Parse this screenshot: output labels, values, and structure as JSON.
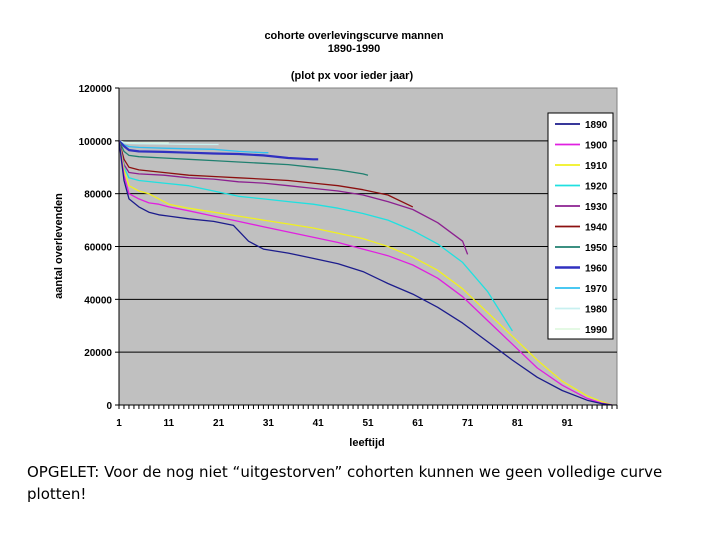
{
  "caption": "OPGELET: Voor de nog niet “uitgestorven” cohorten kunnen we geen volledige curve plotten!",
  "chart_data": {
    "type": "line",
    "title": [
      "cohorte overlevingscurve  mannen",
      "1890-1990",
      "(plot px voor ieder jaar)"
    ],
    "xlabel": "leeftijd",
    "ylabel": "aantal overlevenden",
    "xlim": [
      1,
      101
    ],
    "ylim": [
      0,
      120000
    ],
    "xticks": [
      1,
      11,
      21,
      31,
      41,
      51,
      61,
      71,
      81,
      91
    ],
    "yticks": [
      0,
      20000,
      40000,
      60000,
      80000,
      100000,
      120000
    ],
    "ytick_labels": [
      "0",
      "20000",
      "40000",
      "60000",
      "80000",
      "100000",
      "120000"
    ],
    "grid": "horizontal",
    "background": "#c0c0c0",
    "legend_position": "right",
    "series": [
      {
        "name": "1890",
        "color": "#1c1c8c",
        "width": 1.3,
        "x": [
          1,
          2,
          3,
          5,
          7,
          9,
          11,
          15,
          20,
          24,
          27,
          30,
          35,
          40,
          45,
          50,
          55,
          60,
          65,
          70,
          75,
          80,
          85,
          90,
          95,
          98,
          100
        ],
        "y": [
          100000,
          85000,
          78000,
          75000,
          73000,
          72000,
          71500,
          70500,
          69500,
          68000,
          62000,
          59000,
          57500,
          55500,
          53500,
          50500,
          46000,
          42000,
          37000,
          31000,
          24000,
          17000,
          10500,
          5500,
          1800,
          500,
          0
        ]
      },
      {
        "name": "1900",
        "color": "#e020e0",
        "width": 1.3,
        "x": [
          1,
          2,
          3,
          5,
          7,
          9,
          11,
          15,
          20,
          25,
          30,
          35,
          40,
          45,
          50,
          55,
          60,
          65,
          70,
          75,
          80,
          85,
          90,
          95,
          98,
          100
        ],
        "y": [
          100000,
          87000,
          80000,
          78000,
          76500,
          76000,
          75000,
          73500,
          71500,
          69500,
          67500,
          65500,
          63500,
          61500,
          59000,
          56500,
          53000,
          48000,
          41000,
          32000,
          23000,
          14000,
          7500,
          2500,
          700,
          0
        ]
      },
      {
        "name": "1910",
        "color": "#f0f020",
        "width": 1.3,
        "x": [
          1,
          2,
          3,
          5,
          7,
          9,
          11,
          15,
          20,
          25,
          30,
          35,
          40,
          45,
          50,
          55,
          60,
          65,
          70,
          75,
          80,
          85,
          90,
          95,
          98,
          100
        ],
        "y": [
          100000,
          89000,
          83000,
          81000,
          80000,
          78000,
          76000,
          74500,
          73000,
          71500,
          70000,
          68500,
          67000,
          65000,
          63000,
          60000,
          56000,
          51000,
          44000,
          35000,
          26000,
          17000,
          9000,
          3500,
          1200,
          0
        ]
      },
      {
        "name": "1920",
        "color": "#20e0e0",
        "width": 1.3,
        "x": [
          1,
          2,
          3,
          5,
          10,
          15,
          20,
          25,
          30,
          35,
          40,
          45,
          50,
          55,
          60,
          65,
          70,
          75,
          80
        ],
        "y": [
          100000,
          90000,
          86000,
          85000,
          84000,
          83000,
          81000,
          79000,
          78000,
          77000,
          76000,
          74500,
          72500,
          70000,
          66000,
          61000,
          54000,
          43000,
          28000
        ]
      },
      {
        "name": "1930",
        "color": "#8c2090",
        "width": 1.3,
        "x": [
          1,
          2,
          3,
          5,
          10,
          15,
          20,
          25,
          30,
          35,
          40,
          45,
          50,
          55,
          60,
          65,
          70,
          71
        ],
        "y": [
          100000,
          91000,
          88000,
          87500,
          87000,
          86000,
          85500,
          84500,
          84000,
          83000,
          82000,
          81000,
          79500,
          77000,
          74000,
          69000,
          62000,
          57000
        ]
      },
      {
        "name": "1940",
        "color": "#8c1010",
        "width": 1.3,
        "x": [
          1,
          2,
          3,
          5,
          10,
          15,
          20,
          25,
          30,
          35,
          40,
          45,
          50,
          55,
          60
        ],
        "y": [
          100000,
          93000,
          90000,
          89000,
          88000,
          87000,
          86500,
          86000,
          85500,
          85000,
          84000,
          83000,
          81500,
          79500,
          75000
        ]
      },
      {
        "name": "1950",
        "color": "#208070",
        "width": 1.3,
        "x": [
          1,
          2,
          3,
          5,
          10,
          15,
          20,
          25,
          30,
          35,
          40,
          45,
          50,
          51
        ],
        "y": [
          100000,
          96000,
          94500,
          94000,
          93500,
          93000,
          92500,
          92000,
          91500,
          91000,
          90000,
          89000,
          87500,
          87000
        ]
      },
      {
        "name": "1960",
        "color": "#3030c0",
        "width": 2.2,
        "x": [
          1,
          2,
          3,
          5,
          10,
          15,
          20,
          25,
          30,
          35,
          40,
          41
        ],
        "y": [
          100000,
          98000,
          96500,
          96000,
          95800,
          95500,
          95200,
          95000,
          94500,
          93500,
          93000,
          93000
        ]
      },
      {
        "name": "1970",
        "color": "#30c0f0",
        "width": 1.3,
        "x": [
          1,
          2,
          3,
          5,
          10,
          15,
          20,
          25,
          30,
          31
        ],
        "y": [
          100000,
          98500,
          97800,
          97500,
          97200,
          97000,
          96800,
          96000,
          95500,
          95500
        ]
      },
      {
        "name": "1980",
        "color": "#c8f0f0",
        "width": 1.3,
        "x": [
          1,
          2,
          3,
          5,
          10,
          15,
          20,
          21
        ],
        "y": [
          100000,
          99200,
          99000,
          98900,
          98800,
          98700,
          98600,
          98600
        ]
      },
      {
        "name": "1990",
        "color": "#e0f8e0",
        "width": 1.3,
        "x": [
          1,
          2,
          3,
          5,
          8,
          11
        ],
        "y": [
          100000,
          99500,
          99300,
          99200,
          99200,
          99200
        ]
      }
    ]
  }
}
